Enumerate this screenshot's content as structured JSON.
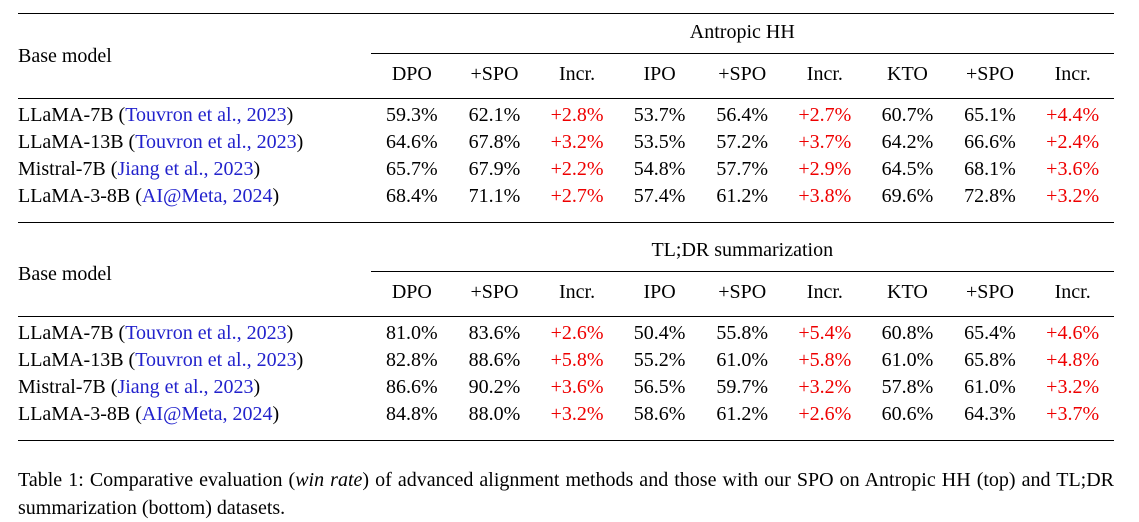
{
  "colors": {
    "citation_blue": "#2222CC",
    "increase_red": "#EE0000",
    "text_black": "#000000"
  },
  "table": {
    "row_header_label": "Base model",
    "column_headers": [
      "DPO",
      "+SPO",
      "Incr.",
      "IPO",
      "+SPO",
      "Incr.",
      "KTO",
      "+SPO",
      "Incr."
    ],
    "sections": [
      {
        "title": "Antropic HH",
        "rows": [
          {
            "model": "LLaMA-7B",
            "citation": "Touvron et al., 2023",
            "values": [
              "59.3%",
              "62.1%",
              "+2.8%",
              "53.7%",
              "56.4%",
              "+2.7%",
              "60.7%",
              "65.1%",
              "+4.4%"
            ]
          },
          {
            "model": "LLaMA-13B",
            "citation": "Touvron et al., 2023",
            "values": [
              "64.6%",
              "67.8%",
              "+3.2%",
              "53.5%",
              "57.2%",
              "+3.7%",
              "64.2%",
              "66.6%",
              "+2.4%"
            ]
          },
          {
            "model": "Mistral-7B",
            "citation": "Jiang et al., 2023",
            "values": [
              "65.7%",
              "67.9%",
              "+2.2%",
              "54.8%",
              "57.7%",
              "+2.9%",
              "64.5%",
              "68.1%",
              "+3.6%"
            ]
          },
          {
            "model": "LLaMA-3-8B",
            "citation": "AI@Meta, 2024",
            "values": [
              "68.4%",
              "71.1%",
              "+2.7%",
              "57.4%",
              "61.2%",
              "+3.8%",
              "69.6%",
              "72.8%",
              "+3.2%"
            ]
          }
        ]
      },
      {
        "title": "TL;DR summarization",
        "rows": [
          {
            "model": "LLaMA-7B",
            "citation": "Touvron et al., 2023",
            "values": [
              "81.0%",
              "83.6%",
              "+2.6%",
              "50.4%",
              "55.8%",
              "+5.4%",
              "60.8%",
              "65.4%",
              "+4.6%"
            ]
          },
          {
            "model": "LLaMA-13B",
            "citation": "Touvron et al., 2023",
            "values": [
              "82.8%",
              "88.6%",
              "+5.8%",
              "55.2%",
              "61.0%",
              "+5.8%",
              "61.0%",
              "65.8%",
              "+4.8%"
            ]
          },
          {
            "model": "Mistral-7B",
            "citation": "Jiang et al., 2023",
            "values": [
              "86.6%",
              "90.2%",
              "+3.6%",
              "56.5%",
              "59.7%",
              "+3.2%",
              "57.8%",
              "61.0%",
              "+3.2%"
            ]
          },
          {
            "model": "LLaMA-3-8B",
            "citation": "AI@Meta, 2024",
            "values": [
              "84.8%",
              "88.0%",
              "+3.2%",
              "58.6%",
              "61.2%",
              "+2.6%",
              "60.6%",
              "64.3%",
              "+3.7%"
            ]
          }
        ]
      }
    ]
  },
  "caption": {
    "prefix": "Table 1: Comparative evaluation (",
    "italic": "win rate",
    "suffix": ") of advanced alignment methods and those with our SPO on Antropic HH (top) and TL;DR summarization (bottom) datasets."
  }
}
